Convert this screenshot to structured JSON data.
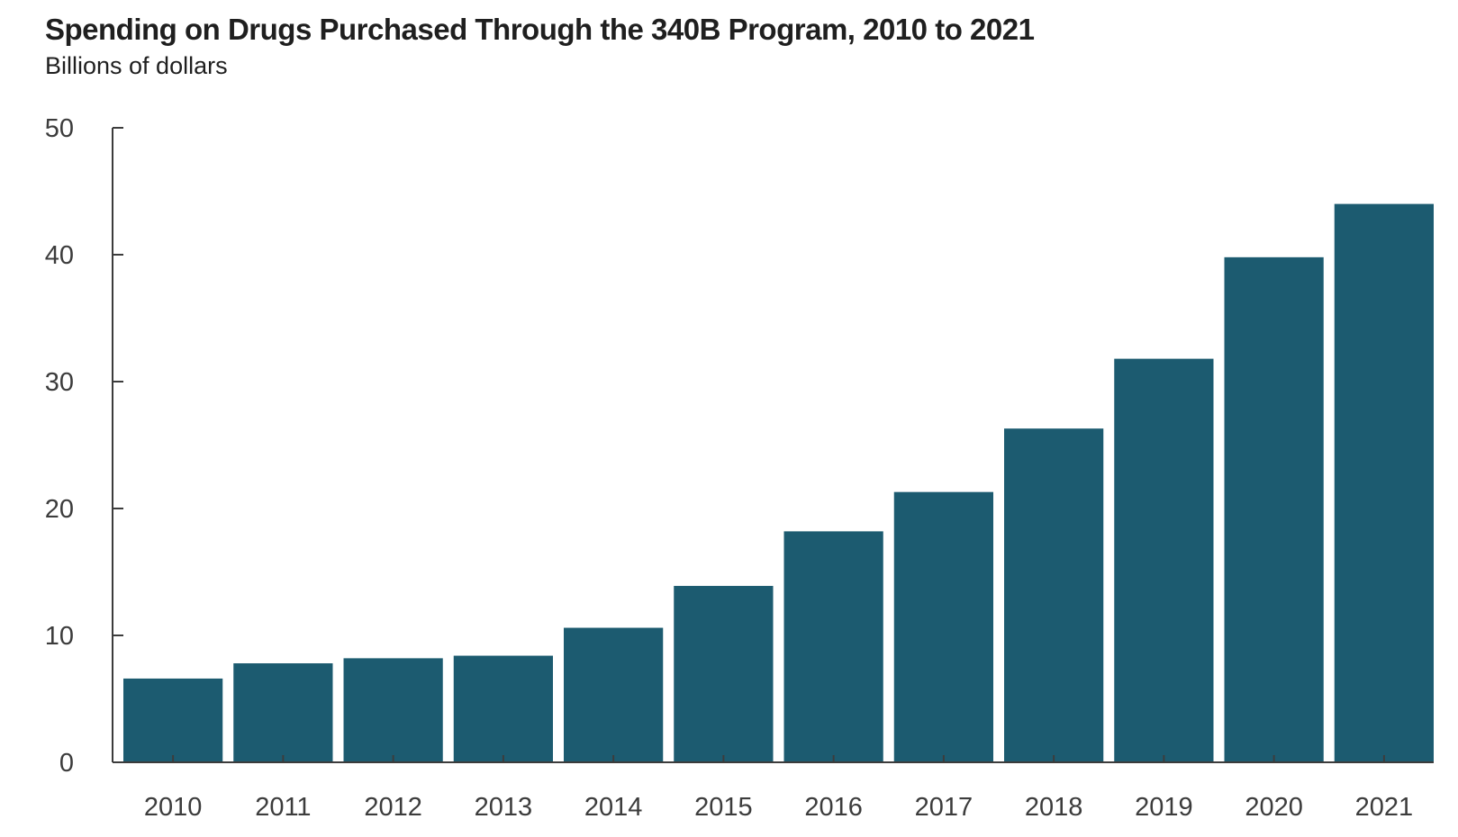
{
  "chart_data": {
    "type": "bar",
    "title": "Spending on Drugs Purchased Through the 340B Program, 2010 to 2021",
    "subtitle": "Billions of dollars",
    "categories": [
      "2010",
      "2011",
      "2012",
      "2013",
      "2014",
      "2015",
      "2016",
      "2017",
      "2018",
      "2019",
      "2020",
      "2021"
    ],
    "values": [
      6.6,
      7.8,
      8.2,
      8.4,
      10.6,
      13.9,
      18.2,
      21.3,
      26.3,
      31.8,
      39.8,
      44.0
    ],
    "yticks": [
      "0",
      "10",
      "20",
      "30",
      "40",
      "50"
    ],
    "ylim": [
      0,
      50
    ],
    "xlabel": "",
    "ylabel": "",
    "grid": false,
    "colors": {
      "bar": "#1c5b70",
      "axis": "#3c3c3c",
      "text": "#1f1f1f"
    }
  }
}
